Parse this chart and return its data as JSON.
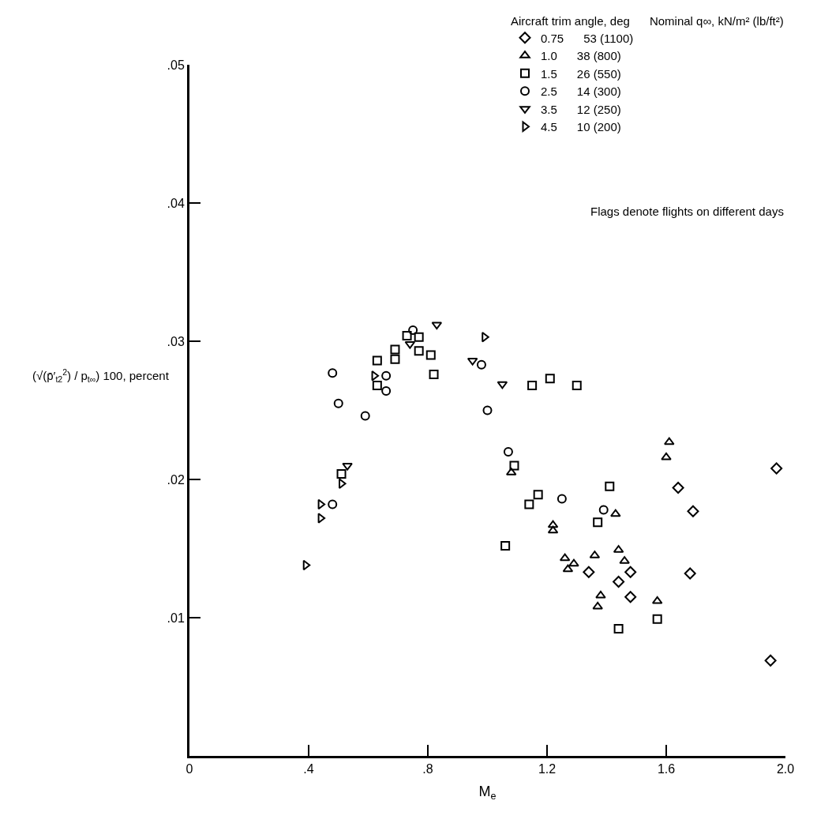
{
  "chart_data": {
    "type": "scatter",
    "xlabel": "M$_{e}$",
    "ylabel": "(√(p̄′$_{t2}$$^{2}$) / p$_{t∞}$) 100, percent",
    "legend_title": "Aircraft trim angle, deg      Nominal q∞, kN/m² (lb/ft²)",
    "legend": "top right",
    "annotations": [
      "Flags denote flights on different days"
    ],
    "xlim": [
      0,
      2.0
    ],
    "xticks": [
      {
        "value": 0,
        "label": "0"
      },
      {
        "value": 0.4,
        "label": ".4"
      },
      {
        "value": 0.8,
        "label": ".8"
      },
      {
        "value": 1.2,
        "label": "1.2"
      },
      {
        "value": 1.6,
        "label": "1.6"
      },
      {
        "value": 2.0,
        "label": "2.0"
      }
    ],
    "ylim": [
      0,
      0.05
    ],
    "yticks": [
      {
        "value": 0.01,
        "label": ".01"
      },
      {
        "value": 0.02,
        "label": ".02"
      },
      {
        "value": 0.03,
        "label": ".03"
      },
      {
        "value": 0.04,
        "label": ".04"
      },
      {
        "value": 0.05,
        "label": ".05"
      }
    ],
    "series": [
      {
        "name": "0.75      53 (1100)",
        "color": "#000000",
        "marker": "diamond",
        "x": [
          1.48,
          1.34,
          1.44,
          1.48,
          1.64,
          1.69,
          1.68,
          1.97,
          1.95
        ],
        "values": [
          0.0133,
          0.0133,
          0.0126,
          0.0115,
          0.0194,
          0.0177,
          0.0132,
          0.0208,
          0.0069
        ]
      },
      {
        "name": "1.0      38 (800)",
        "color": "#000000",
        "marker": "triangle",
        "x": [
          1.08,
          1.22,
          1.22,
          1.26,
          1.29,
          1.27,
          1.43,
          1.36,
          1.44,
          1.46,
          1.38,
          1.37,
          1.57,
          1.61,
          1.6
        ],
        "values": [
          0.0205,
          0.0167,
          0.0163,
          0.0143,
          0.0139,
          0.0135,
          0.0175,
          0.0145,
          0.0149,
          0.0141,
          0.0116,
          0.0108,
          0.0112,
          0.0227,
          0.0216
        ]
      },
      {
        "name": "1.5      26 (550)",
        "color": "#000000",
        "marker": "square",
        "x": [
          0.63,
          0.69,
          0.69,
          0.63,
          0.73,
          0.77,
          0.77,
          0.81,
          0.82,
          0.51,
          1.15,
          1.21,
          1.3,
          1.09,
          1.17,
          1.14,
          1.06,
          1.41,
          1.37,
          1.57,
          1.44
        ],
        "values": [
          0.0286,
          0.0294,
          0.0287,
          0.0268,
          0.0304,
          0.0303,
          0.0293,
          0.029,
          0.0276,
          0.0204,
          0.0268,
          0.0273,
          0.0268,
          0.021,
          0.0189,
          0.0182,
          0.0152,
          0.0195,
          0.0169,
          0.0099,
          0.0092
        ]
      },
      {
        "name": "2.5      14 (300)",
        "color": "#000000",
        "marker": "circle",
        "x": [
          0.48,
          0.5,
          0.59,
          0.66,
          0.66,
          0.75,
          0.98,
          1.0,
          0.48,
          1.07,
          1.25,
          1.39
        ],
        "values": [
          0.0277,
          0.0255,
          0.0246,
          0.0275,
          0.0264,
          0.0308,
          0.0283,
          0.025,
          0.0182,
          0.022,
          0.0186,
          0.0178
        ]
      },
      {
        "name": "3.5      12 (250)",
        "color": "#000000",
        "marker": "triangle-down",
        "x": [
          0.74,
          0.83,
          0.95,
          1.05,
          0.53
        ],
        "values": [
          0.0298,
          0.0312,
          0.0286,
          0.0269,
          0.021
        ]
      },
      {
        "name": "4.5      10 (200)",
        "color": "#000000",
        "marker": "triangle-right",
        "x": [
          0.62,
          0.99,
          0.51,
          0.44,
          0.44,
          0.39
        ],
        "values": [
          0.0275,
          0.0303,
          0.0197,
          0.0182,
          0.0172,
          0.0138
        ]
      }
    ]
  }
}
